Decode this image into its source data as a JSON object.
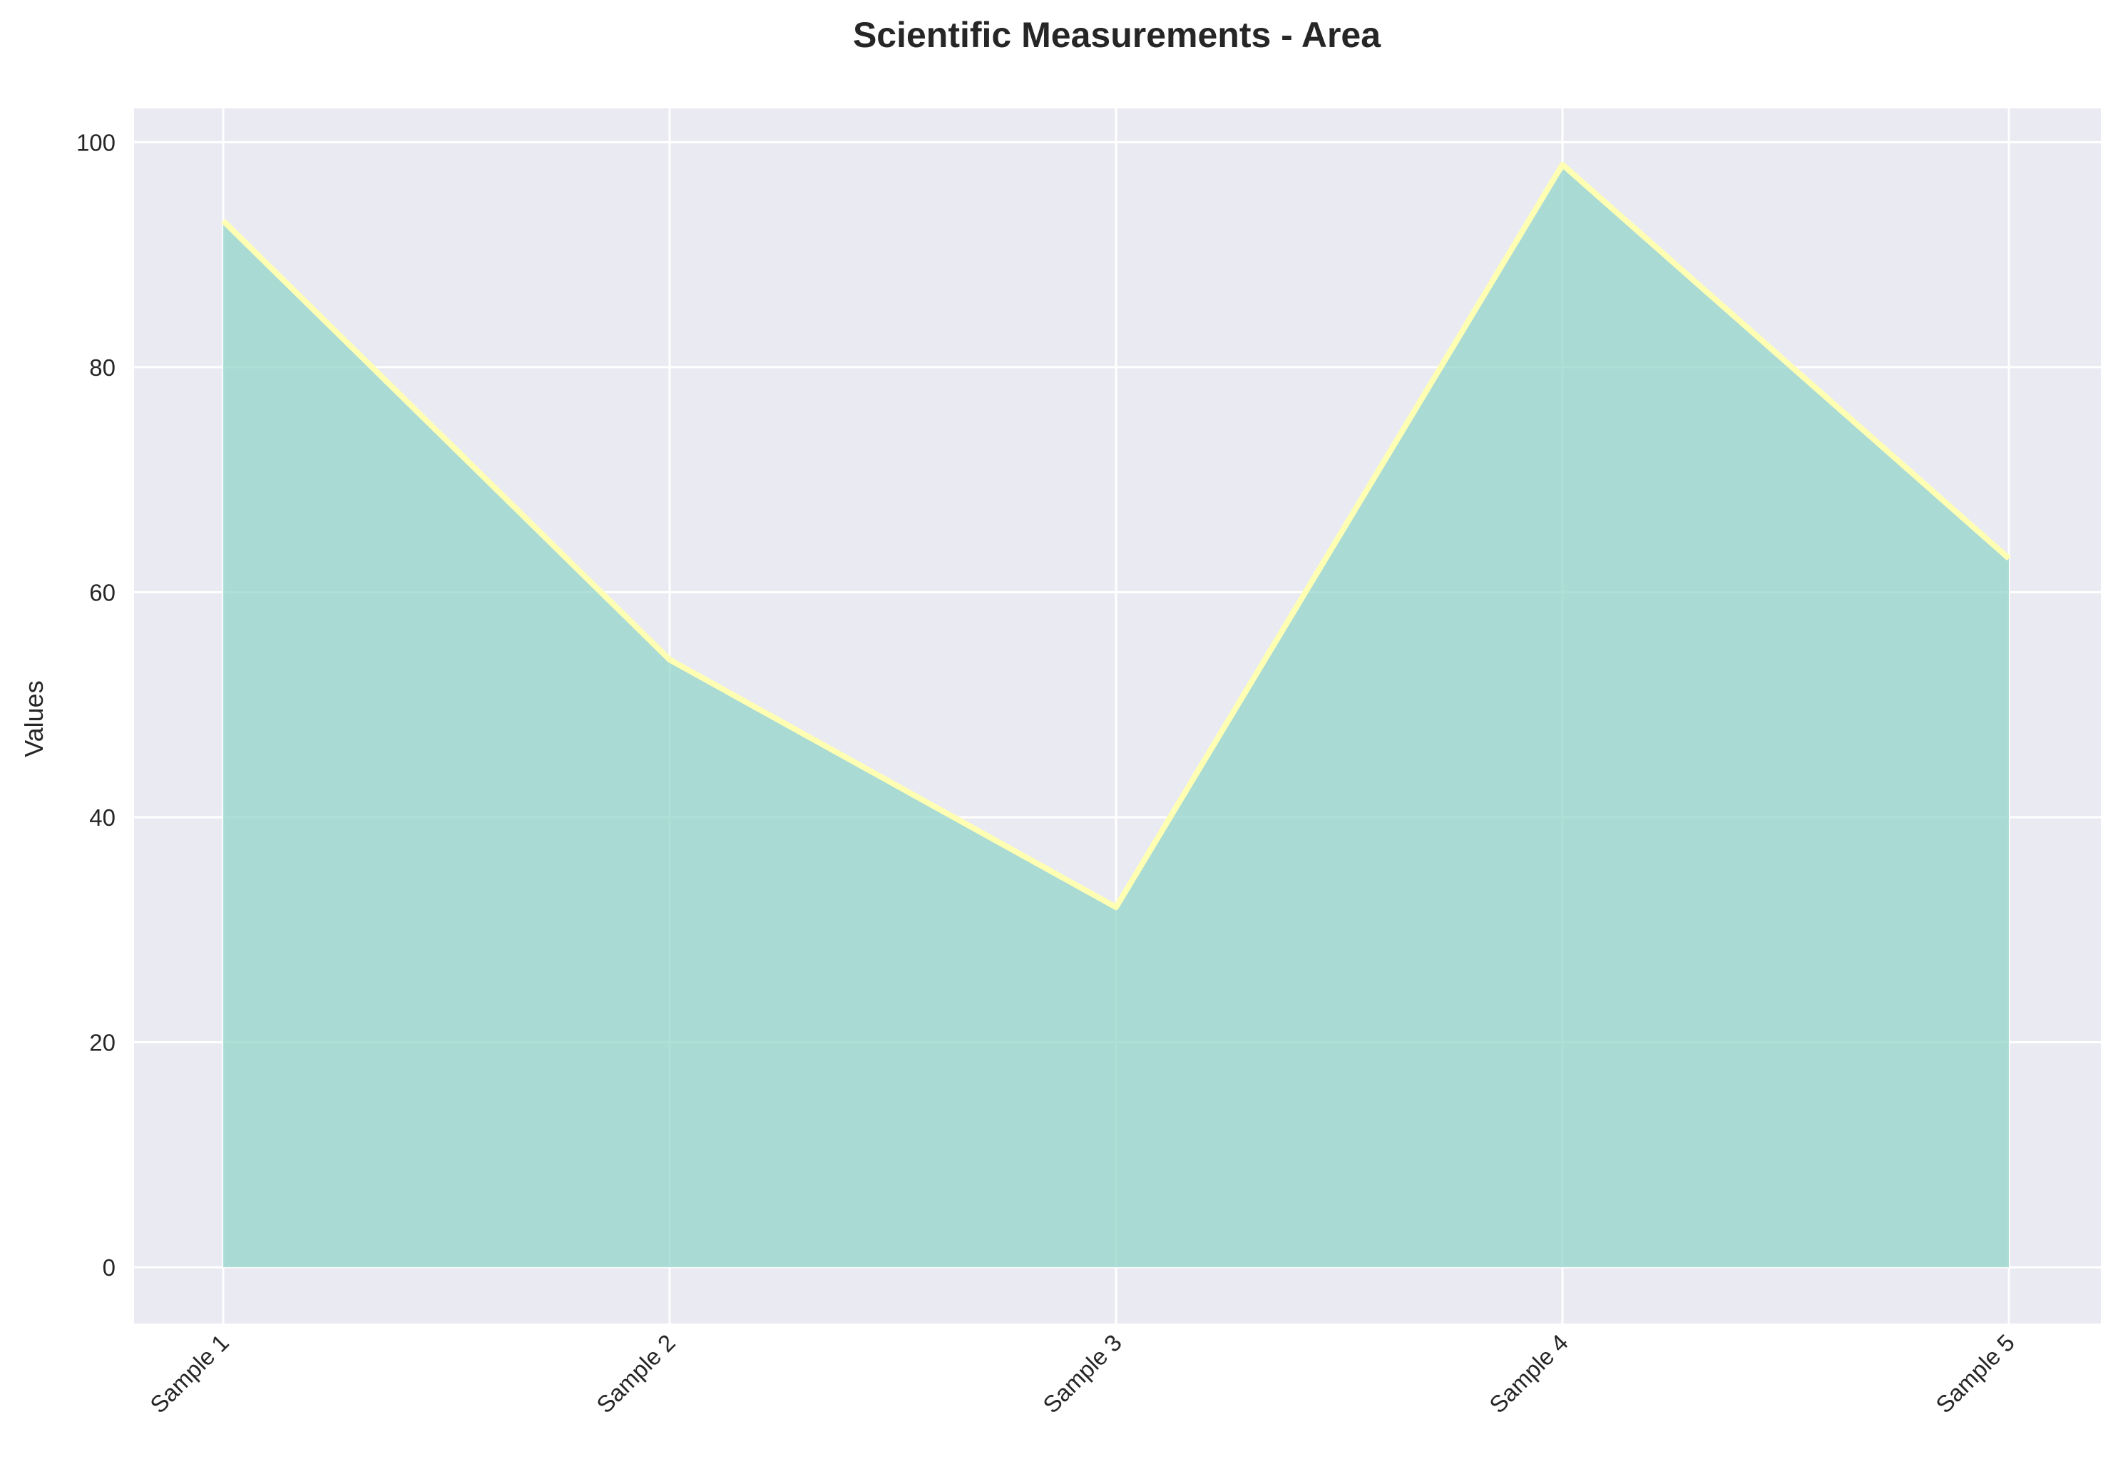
{
  "chart_data": {
    "type": "area",
    "title": "Scientific Measurements - Area",
    "xlabel": "",
    "ylabel": "Values",
    "categories": [
      "Sample 1",
      "Sample 2",
      "Sample 3",
      "Sample 4",
      "Sample 5"
    ],
    "values": [
      93,
      54,
      32,
      98,
      63
    ],
    "ylim": [
      -5,
      103
    ],
    "yticks": [
      0,
      20,
      40,
      60,
      80,
      100
    ],
    "grid": true,
    "colors": {
      "fill": "#8dd3c7",
      "line": "#ffffb3",
      "background": "#eaeaf2",
      "grid": "#ffffff"
    }
  }
}
